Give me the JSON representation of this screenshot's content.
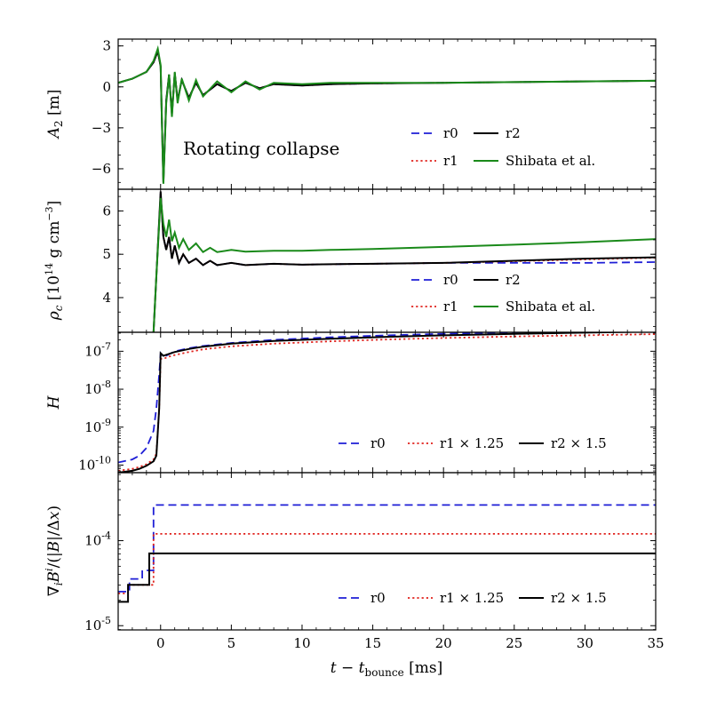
{
  "chart_data": [
    {
      "type": "line",
      "panel": "top",
      "ylabel": "A_2 [m]",
      "ylim": [
        -7.5,
        3.5
      ],
      "yticks": [
        -6,
        -3,
        0,
        3
      ],
      "ytick_labels": [
        "−6",
        "−3",
        "0",
        "3"
      ],
      "yscale": "linear",
      "annotation": "Rotating collapse",
      "legend_position": "lower-right",
      "legend": [
        "r0",
        "r1",
        "r2",
        "Shibata et al."
      ],
      "series": [
        {
          "name": "r0",
          "color": "#1f1fd6",
          "dash": "dashed",
          "x": [
            -3,
            -2,
            -1,
            -0.5,
            -0.2,
            0,
            0.1,
            0.2,
            0.4,
            0.6,
            0.8,
            1,
            1.2,
            1.5,
            2,
            2.5,
            3,
            4,
            5,
            6,
            7,
            8,
            10,
            12,
            15,
            20,
            25,
            30,
            35
          ],
          "y": [
            0.3,
            0.6,
            1.1,
            1.8,
            2.7,
            1.5,
            -3,
            -6.8,
            -1,
            0.8,
            -2,
            1,
            -1,
            0.5,
            -0.8,
            0.3,
            -0.6,
            0.2,
            -0.3,
            0.3,
            -0.1,
            0.2,
            0.1,
            0.2,
            0.25,
            0.3,
            0.35,
            0.4,
            0.45
          ]
        },
        {
          "name": "r1",
          "color": "#e0201b",
          "dash": "dotted",
          "x": [
            -3,
            -2,
            -1,
            -0.5,
            -0.2,
            0,
            0.1,
            0.2,
            0.4,
            0.6,
            0.8,
            1,
            1.2,
            1.5,
            2,
            2.5,
            3,
            4,
            5,
            6,
            7,
            8,
            10,
            12,
            15,
            20,
            25,
            30,
            35
          ],
          "y": [
            0.3,
            0.6,
            1.1,
            1.8,
            2.6,
            1.5,
            -3,
            -6.8,
            -1,
            0.8,
            -2,
            1,
            -1,
            0.5,
            -0.8,
            0.3,
            -0.6,
            0.2,
            -0.3,
            0.3,
            -0.1,
            0.2,
            0.1,
            0.2,
            0.25,
            0.3,
            0.35,
            0.4,
            0.45
          ]
        },
        {
          "name": "r2",
          "color": "#000000",
          "dash": "solid",
          "x": [
            -3,
            -2,
            -1,
            -0.5,
            -0.2,
            0,
            0.1,
            0.2,
            0.4,
            0.6,
            0.8,
            1,
            1.2,
            1.5,
            2,
            2.5,
            3,
            4,
            5,
            6,
            7,
            8,
            10,
            12,
            15,
            20,
            25,
            30,
            35
          ],
          "y": [
            0.3,
            0.6,
            1.1,
            1.8,
            2.6,
            1.5,
            -3,
            -7,
            -1,
            0.9,
            -2,
            1,
            -1,
            0.5,
            -0.8,
            0.3,
            -0.6,
            0.2,
            -0.3,
            0.3,
            -0.1,
            0.2,
            0.1,
            0.2,
            0.25,
            0.3,
            0.35,
            0.4,
            0.45
          ]
        },
        {
          "name": "Shibata et al.",
          "color": "#1a8a1a",
          "dash": "solid",
          "x": [
            -3,
            -2,
            -1,
            -0.5,
            -0.2,
            0,
            0.1,
            0.2,
            0.4,
            0.6,
            0.8,
            1,
            1.2,
            1.5,
            2,
            2.5,
            3,
            4,
            5,
            6,
            7,
            8,
            10,
            12,
            15,
            20,
            25,
            30,
            35
          ],
          "y": [
            0.3,
            0.6,
            1.1,
            1.9,
            2.8,
            1.6,
            -3,
            -7.1,
            -1.2,
            0.9,
            -2.2,
            1.1,
            -1.2,
            0.6,
            -1,
            0.5,
            -0.7,
            0.4,
            -0.4,
            0.4,
            -0.2,
            0.3,
            0.2,
            0.3,
            0.3,
            0.3,
            0.35,
            0.4,
            0.45
          ]
        }
      ]
    },
    {
      "type": "line",
      "panel": "second",
      "ylabel": "ρ_c [10^14 g cm^-3]",
      "ylim": [
        3.2,
        6.5
      ],
      "yticks": [
        4,
        5,
        6
      ],
      "ytick_labels": [
        "4",
        "5",
        "6"
      ],
      "yscale": "linear",
      "legend_position": "lower-right",
      "legend": [
        "r0",
        "r1",
        "r2",
        "Shibata et al."
      ],
      "series": [
        {
          "name": "r0",
          "color": "#1f1fd6",
          "dash": "dashed",
          "x": [
            -0.5,
            -0.3,
            0,
            0.2,
            0.4,
            0.6,
            0.8,
            1,
            1.3,
            1.6,
            2,
            2.5,
            3,
            3.5,
            4,
            5,
            6,
            8,
            10,
            12,
            15,
            20,
            25,
            30,
            35
          ],
          "y": [
            3.2,
            4.5,
            6.4,
            5.4,
            5.1,
            5.4,
            4.9,
            5.2,
            4.8,
            5,
            4.8,
            4.9,
            4.75,
            4.85,
            4.75,
            4.8,
            4.75,
            4.78,
            4.76,
            4.77,
            4.78,
            4.8,
            4.8,
            4.8,
            4.82
          ]
        },
        {
          "name": "r1",
          "color": "#e0201b",
          "dash": "dotted",
          "x": [
            -0.5,
            -0.3,
            0,
            0.2,
            0.4,
            0.6,
            0.8,
            1,
            1.3,
            1.6,
            2,
            2.5,
            3,
            3.5,
            4,
            5,
            6,
            8,
            10,
            12,
            15,
            20,
            25,
            30,
            35
          ],
          "y": [
            3.2,
            4.5,
            6.4,
            5.4,
            5.1,
            5.4,
            4.9,
            5.2,
            4.8,
            5,
            4.8,
            4.9,
            4.75,
            4.85,
            4.75,
            4.8,
            4.75,
            4.78,
            4.76,
            4.77,
            4.78,
            4.8,
            4.84,
            4.88,
            4.92
          ]
        },
        {
          "name": "r2",
          "color": "#000000",
          "dash": "solid",
          "x": [
            -0.5,
            -0.3,
            0,
            0.2,
            0.4,
            0.6,
            0.8,
            1,
            1.3,
            1.6,
            2,
            2.5,
            3,
            3.5,
            4,
            5,
            6,
            8,
            10,
            12,
            15,
            20,
            25,
            30,
            35
          ],
          "y": [
            3.2,
            4.5,
            6.45,
            5.4,
            5.1,
            5.4,
            4.9,
            5.2,
            4.8,
            5,
            4.8,
            4.9,
            4.75,
            4.85,
            4.75,
            4.8,
            4.75,
            4.78,
            4.76,
            4.77,
            4.78,
            4.8,
            4.85,
            4.9,
            4.93
          ]
        },
        {
          "name": "Shibata et al.",
          "color": "#1a8a1a",
          "dash": "solid",
          "x": [
            -0.5,
            -0.3,
            0,
            0.2,
            0.4,
            0.6,
            0.8,
            1,
            1.3,
            1.6,
            2,
            2.5,
            3,
            3.5,
            4,
            5,
            6,
            8,
            10,
            12,
            15,
            20,
            25,
            30,
            35
          ],
          "y": [
            3.2,
            4.5,
            6.3,
            5.7,
            5.4,
            5.8,
            5.3,
            5.5,
            5.15,
            5.35,
            5.1,
            5.25,
            5.05,
            5.15,
            5.05,
            5.1,
            5.06,
            5.08,
            5.08,
            5.1,
            5.12,
            5.17,
            5.22,
            5.28,
            5.35
          ]
        }
      ]
    },
    {
      "type": "line",
      "panel": "third",
      "ylabel": "H",
      "yscale": "log",
      "ylim_log10": [
        -10.2,
        -6.5
      ],
      "yticks_log10": [
        -10,
        -9,
        -8,
        -7
      ],
      "ytick_labels": [
        "10^-10",
        "10^-9",
        "10^-8",
        "10^-7"
      ],
      "legend_position": "lower-right",
      "legend": [
        "r0",
        "r1 × 1.25",
        "r2 × 1.5"
      ],
      "series": [
        {
          "name": "r0",
          "color": "#1f1fd6",
          "dash": "dashed",
          "x": [
            -3,
            -2,
            -1.5,
            -1,
            -0.5,
            -0.3,
            -0.1,
            0,
            0.2,
            0.5,
            1,
            2,
            3,
            5,
            8,
            12,
            16,
            20,
            25,
            30,
            35
          ],
          "y": [
            -9.93,
            -9.85,
            -9.75,
            -9.55,
            -9.1,
            -8.5,
            -7.6,
            -7.05,
            -7.15,
            -7.1,
            -7,
            -6.92,
            -6.86,
            -6.78,
            -6.7,
            -6.63,
            -6.58,
            -6.54,
            -6.5,
            -6.47,
            -6.44
          ]
        },
        {
          "name": "r1 × 1.25",
          "color": "#e0201b",
          "dash": "dotted",
          "x": [
            -3,
            -2,
            -1.5,
            -1,
            -0.5,
            -0.3,
            -0.1,
            0,
            0.2,
            0.5,
            1,
            2,
            3,
            5,
            8,
            12,
            16,
            20,
            25,
            30,
            35
          ],
          "y": [
            -10.15,
            -10.1,
            -10.05,
            -9.98,
            -9.85,
            -9.7,
            -8.5,
            -7.2,
            -7.2,
            -7.15,
            -7.1,
            -7.02,
            -6.95,
            -6.87,
            -6.8,
            -6.74,
            -6.69,
            -6.65,
            -6.61,
            -6.58,
            -6.55
          ]
        },
        {
          "name": "r2 × 1.5",
          "color": "#000000",
          "dash": "solid",
          "x": [
            -3,
            -2,
            -1.5,
            -1,
            -0.5,
            -0.3,
            -0.1,
            0,
            0.2,
            0.5,
            1,
            2,
            3,
            5,
            8,
            12,
            16,
            20,
            25,
            30,
            35
          ],
          "y": [
            -10.2,
            -10.15,
            -10.1,
            -10.02,
            -9.9,
            -9.75,
            -8.5,
            -7.05,
            -7.12,
            -7.08,
            -7.02,
            -6.94,
            -6.88,
            -6.8,
            -6.73,
            -6.67,
            -6.62,
            -6.58,
            -6.54,
            -6.51,
            -6.48
          ]
        }
      ]
    },
    {
      "type": "line",
      "panel": "bottom",
      "ylabel": "∇_i B^i / (|B| / Δx)",
      "yscale": "log",
      "ylim_log10": [
        -5.05,
        -3.2
      ],
      "yticks_log10": [
        -5,
        -4
      ],
      "ytick_labels": [
        "10^-5",
        "10^-4"
      ],
      "xlabel": "t − t_bounce [ms]",
      "xlim": [
        -3,
        35
      ],
      "xticks": [
        0,
        5,
        10,
        15,
        20,
        25,
        30,
        35
      ],
      "xtick_labels": [
        "0",
        "5",
        "10",
        "15",
        "20",
        "25",
        "30",
        "35"
      ],
      "legend_position": "lower-right",
      "legend": [
        "r0",
        "r1 × 1.25",
        "r2 × 1.5"
      ],
      "series": [
        {
          "name": "r0",
          "color": "#1f1fd6",
          "dash": "dashed",
          "step": true,
          "x": [
            -3,
            -2.6,
            -2.2,
            -1.3,
            -0.5,
            35
          ],
          "y": [
            -4.6,
            -4.6,
            -4.45,
            -4.35,
            -3.58,
            -3.58
          ]
        },
        {
          "name": "r1 × 1.25",
          "color": "#e0201b",
          "dash": "dotted",
          "step": true,
          "x": [
            -3,
            -2.5,
            -2.3,
            -1.3,
            -0.5,
            35
          ],
          "y": [
            -4.62,
            -4.62,
            -4.52,
            -4.52,
            -3.92,
            -3.92
          ]
        },
        {
          "name": "r2 × 1.5",
          "color": "#000000",
          "dash": "solid",
          "step": true,
          "x": [
            -3,
            -2.5,
            -2.3,
            -1.3,
            -0.8,
            -0.5,
            35
          ],
          "y": [
            -4.72,
            -4.72,
            -4.52,
            -4.52,
            -4.15,
            -4.15,
            -4.15
          ]
        }
      ]
    }
  ]
}
